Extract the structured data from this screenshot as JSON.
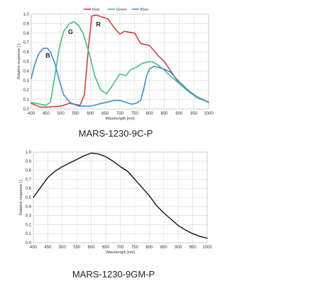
{
  "chart_data": [
    {
      "type": "line",
      "caption": "MARS-1230-9C-P",
      "xlabel": "Wavelength [nm]",
      "ylabel": "Relative response [ ]",
      "xlim": [
        400,
        1000
      ],
      "ylim": [
        0,
        1.0
      ],
      "xticks": [
        400,
        450,
        500,
        550,
        600,
        650,
        700,
        750,
        800,
        850,
        900,
        950,
        1000
      ],
      "yticks": [
        0.0,
        0.1,
        0.2,
        0.3,
        0.4,
        0.5,
        0.6,
        0.7,
        0.8,
        0.9,
        1.0
      ],
      "grid": true,
      "legend_position": "top",
      "series": [
        {
          "name": "Red",
          "color": "#d84040",
          "x": [
            400,
            430,
            460,
            500,
            530,
            545,
            565,
            580,
            595,
            605,
            620,
            640,
            660,
            680,
            700,
            715,
            730,
            750,
            770,
            800,
            830,
            850,
            870,
            900,
            930,
            960,
            1000
          ],
          "y": [
            0.06,
            0.02,
            0.02,
            0.03,
            0.06,
            0.05,
            0.04,
            0.15,
            0.7,
            0.98,
            0.99,
            0.97,
            0.95,
            0.86,
            0.79,
            0.82,
            0.81,
            0.8,
            0.69,
            0.67,
            0.56,
            0.5,
            0.41,
            0.27,
            0.19,
            0.13,
            0.07
          ]
        },
        {
          "name": "Green",
          "color": "#3cc27a",
          "x": [
            400,
            430,
            450,
            465,
            480,
            495,
            510,
            530,
            545,
            560,
            575,
            595,
            615,
            635,
            655,
            675,
            700,
            720,
            735,
            755,
            775,
            800,
            815,
            830,
            850,
            870,
            900,
            930,
            960,
            1000
          ],
          "y": [
            0.07,
            0.05,
            0.04,
            0.07,
            0.35,
            0.65,
            0.82,
            0.9,
            0.92,
            0.88,
            0.8,
            0.6,
            0.35,
            0.2,
            0.16,
            0.25,
            0.37,
            0.35,
            0.41,
            0.44,
            0.48,
            0.5,
            0.49,
            0.46,
            0.41,
            0.35,
            0.27,
            0.19,
            0.12,
            0.07
          ]
        },
        {
          "name": "Blue",
          "color": "#3d8fd6",
          "x": [
            400,
            410,
            425,
            440,
            455,
            465,
            480,
            495,
            510,
            530,
            560,
            600,
            640,
            680,
            700,
            720,
            740,
            755,
            770,
            780,
            790,
            800,
            815,
            830,
            850,
            870,
            900,
            930,
            960,
            1000
          ],
          "y": [
            0.32,
            0.45,
            0.58,
            0.64,
            0.64,
            0.6,
            0.48,
            0.3,
            0.15,
            0.07,
            0.03,
            0.03,
            0.06,
            0.09,
            0.09,
            0.07,
            0.05,
            0.06,
            0.09,
            0.2,
            0.35,
            0.42,
            0.45,
            0.44,
            0.42,
            0.39,
            0.29,
            0.2,
            0.13,
            0.07
          ]
        }
      ],
      "annotations": [
        {
          "text": "R",
          "x": 627,
          "y": 0.87
        },
        {
          "text": "G",
          "x": 533,
          "y": 0.79
        },
        {
          "text": "B",
          "x": 456,
          "y": 0.54
        }
      ]
    },
    {
      "type": "line",
      "caption": "MARS-1230-9GM-P",
      "xlabel": "Wavelength [nm]",
      "ylabel": "Relative response [ ]",
      "xlim": [
        400,
        1000
      ],
      "ylim": [
        0,
        1.0
      ],
      "xticks": [
        400,
        450,
        500,
        550,
        600,
        650,
        700,
        750,
        800,
        850,
        900,
        950,
        1000
      ],
      "yticks": [
        0.0,
        0.1,
        0.2,
        0.3,
        0.4,
        0.5,
        0.6,
        0.7,
        0.8,
        0.9,
        1.0
      ],
      "grid": true,
      "series": [
        {
          "color": "#111111",
          "x": [
            400,
            425,
            450,
            475,
            500,
            525,
            550,
            575,
            600,
            625,
            650,
            675,
            700,
            725,
            750,
            775,
            800,
            825,
            850,
            875,
            900,
            925,
            950,
            975,
            1000
          ],
          "y": [
            0.5,
            0.61,
            0.72,
            0.79,
            0.84,
            0.88,
            0.92,
            0.96,
            0.99,
            0.98,
            0.95,
            0.9,
            0.84,
            0.79,
            0.7,
            0.61,
            0.52,
            0.41,
            0.33,
            0.26,
            0.19,
            0.14,
            0.1,
            0.07,
            0.05
          ]
        }
      ]
    }
  ]
}
